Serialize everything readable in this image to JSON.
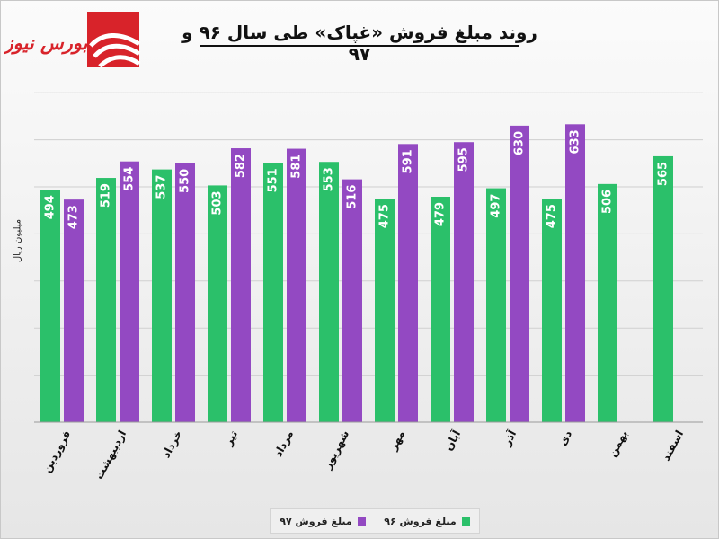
{
  "title": "روند مبلغ فروش «غپاک» طی سال ۹۶ و ۹۷",
  "logo_text": "بورس نیوز",
  "colors": {
    "series_96": "#2bc06a",
    "series_97": "#9349c2",
    "brand": "#d8232a"
  },
  "chart_data": {
    "type": "bar",
    "title": "روند مبلغ فروش «غپاک» طی سال ۹۶ و ۹۷",
    "xlabel": "",
    "ylabel": "میلیون ریال",
    "ylim": [
      0,
      750
    ],
    "grid": true,
    "legend_position": "bottom",
    "categories": [
      "فروردین",
      "اردیبهشت",
      "خرداد",
      "تیر",
      "مرداد",
      "شهریور",
      "مهر",
      "آبان",
      "آذر",
      "دی",
      "بهمن",
      "اسفند"
    ],
    "series": [
      {
        "name": "مبلغ فروش ۹۶",
        "color": "#2bc06a",
        "values": [
          494,
          519,
          537,
          503,
          551,
          553,
          475,
          479,
          497,
          475,
          506,
          565
        ]
      },
      {
        "name": "مبلغ فروش ۹۷",
        "color": "#9349c2",
        "values": [
          473,
          554,
          550,
          582,
          581,
          516,
          591,
          595,
          630,
          633,
          null,
          null
        ]
      }
    ]
  }
}
